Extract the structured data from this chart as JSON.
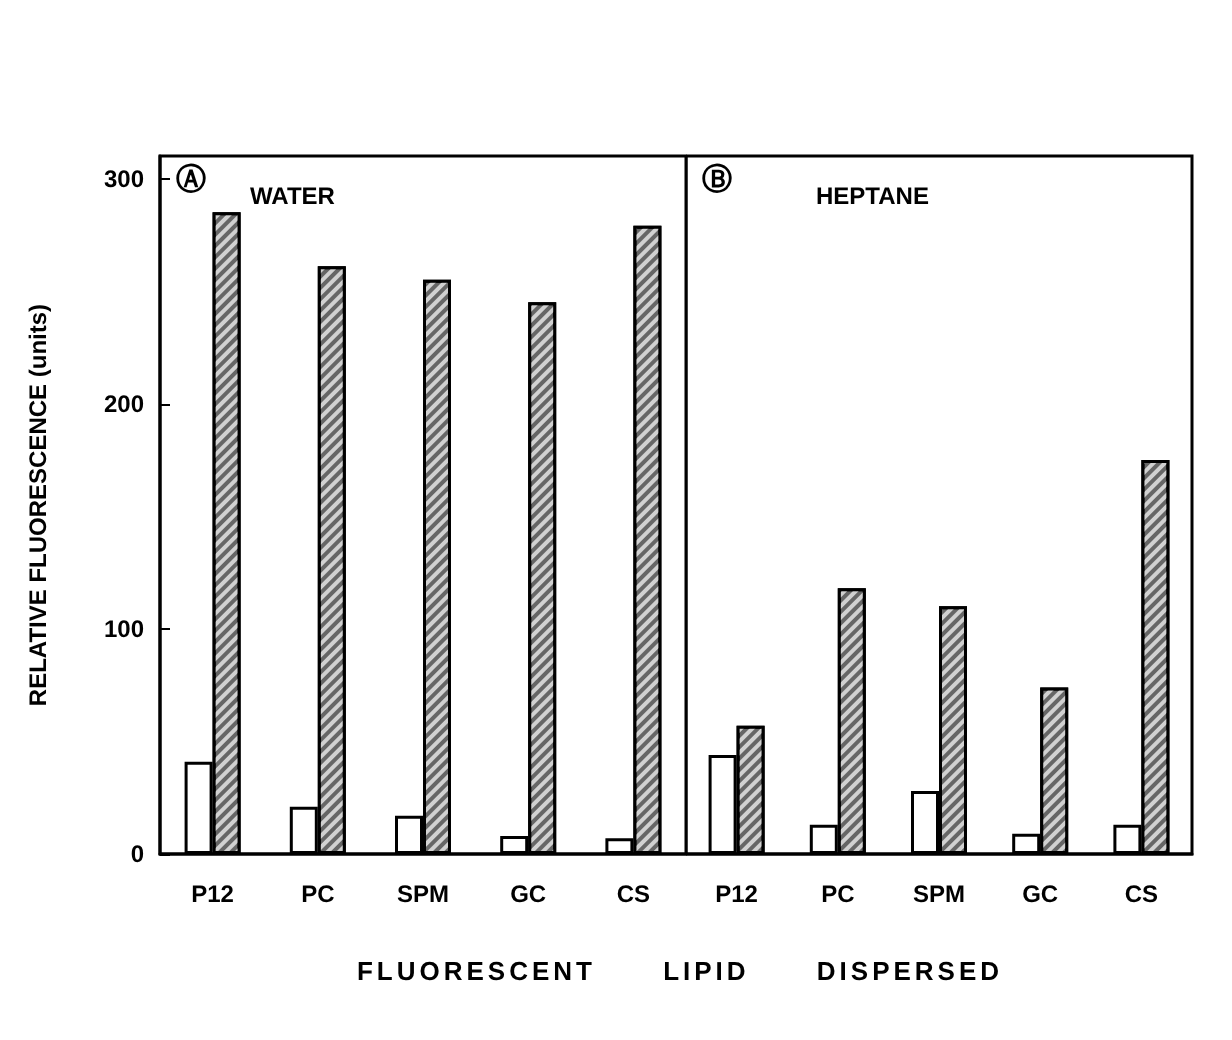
{
  "chart_data": [
    {
      "type": "bar",
      "title": "WATER",
      "annotations": [
        "Ⓐ"
      ],
      "ylabel": "RELATIVE FLUORESCENCE (units)",
      "xlabel": "FLUORESCENT LIPID DISPERSED",
      "categories": [
        "P12",
        "PC",
        "SPM",
        "GC",
        "CS"
      ],
      "ylim": [
        0,
        310
      ],
      "yticks": [
        0,
        100,
        200,
        300
      ],
      "grid": false,
      "series": [
        {
          "color": "#ffffff",
          "values": [
            41,
            21,
            17,
            8,
            7
          ]
        },
        {
          "color": "#666666",
          "values": [
            285,
            261,
            255,
            245,
            279
          ]
        }
      ]
    },
    {
      "type": "bar",
      "title": "HEPTANE",
      "annotations": [
        "Ⓑ"
      ],
      "categories": [
        "P12",
        "PC",
        "SPM",
        "GC",
        "CS"
      ],
      "ylim": [
        0,
        310
      ],
      "tick_labels": "x",
      "grid": false,
      "series": [
        {
          "color": "#ffffff",
          "values": [
            44,
            13,
            28,
            9,
            13
          ]
        },
        {
          "color": "#666666",
          "values": [
            57,
            118,
            110,
            74,
            175
          ]
        }
      ]
    }
  ]
}
